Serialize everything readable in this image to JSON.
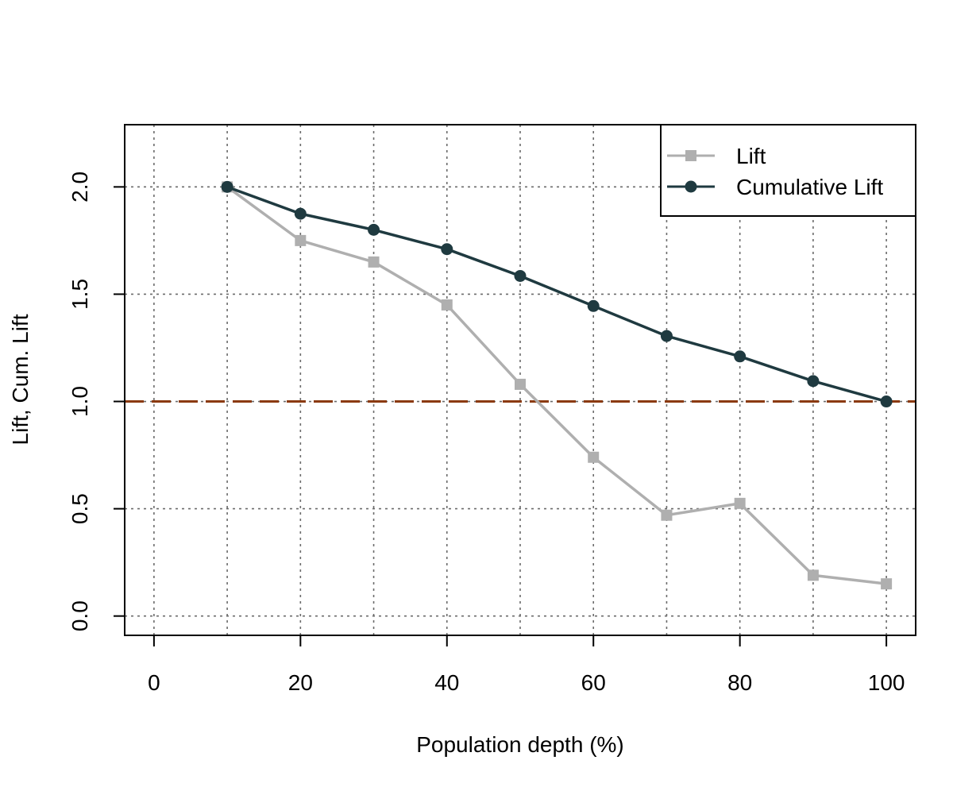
{
  "chart_data": {
    "type": "line",
    "title": "",
    "xlabel": "Population depth (%)",
    "ylabel": "Lift,  Cum. Lift",
    "xlim": [
      -4,
      104
    ],
    "ylim": [
      -0.09,
      2.29
    ],
    "x_ticks": [
      0,
      20,
      40,
      60,
      80,
      100
    ],
    "x_tick_labels": [
      "0",
      "20",
      "40",
      "60",
      "80",
      "100"
    ],
    "y_ticks": [
      0.0,
      0.5,
      1.0,
      1.5,
      2.0
    ],
    "y_tick_labels": [
      "0.0",
      "0.5",
      "1.0",
      "1.5",
      "2.0"
    ],
    "grid": true,
    "grid_x": [
      0,
      10,
      20,
      30,
      40,
      50,
      60,
      70,
      80,
      90,
      100
    ],
    "grid_y": [
      0.0,
      0.5,
      1.0,
      1.5,
      2.0
    ],
    "reference_line": {
      "y": 1.0,
      "color": "#8B3A0F",
      "style": "dashed"
    },
    "legend_position": "top-right",
    "x": [
      10,
      20,
      30,
      40,
      50,
      60,
      70,
      80,
      90,
      100
    ],
    "series": [
      {
        "name": "Lift",
        "color": "#AFAFAF",
        "marker": "square",
        "values": [
          2.0,
          1.75,
          1.65,
          1.45,
          1.08,
          0.74,
          0.47,
          0.525,
          0.19,
          0.15
        ]
      },
      {
        "name": "Cumulative Lift",
        "color": "#1F3A40",
        "marker": "circle",
        "values": [
          2.0,
          1.875,
          1.8,
          1.71,
          1.585,
          1.445,
          1.305,
          1.21,
          1.095,
          1.0
        ]
      }
    ]
  }
}
